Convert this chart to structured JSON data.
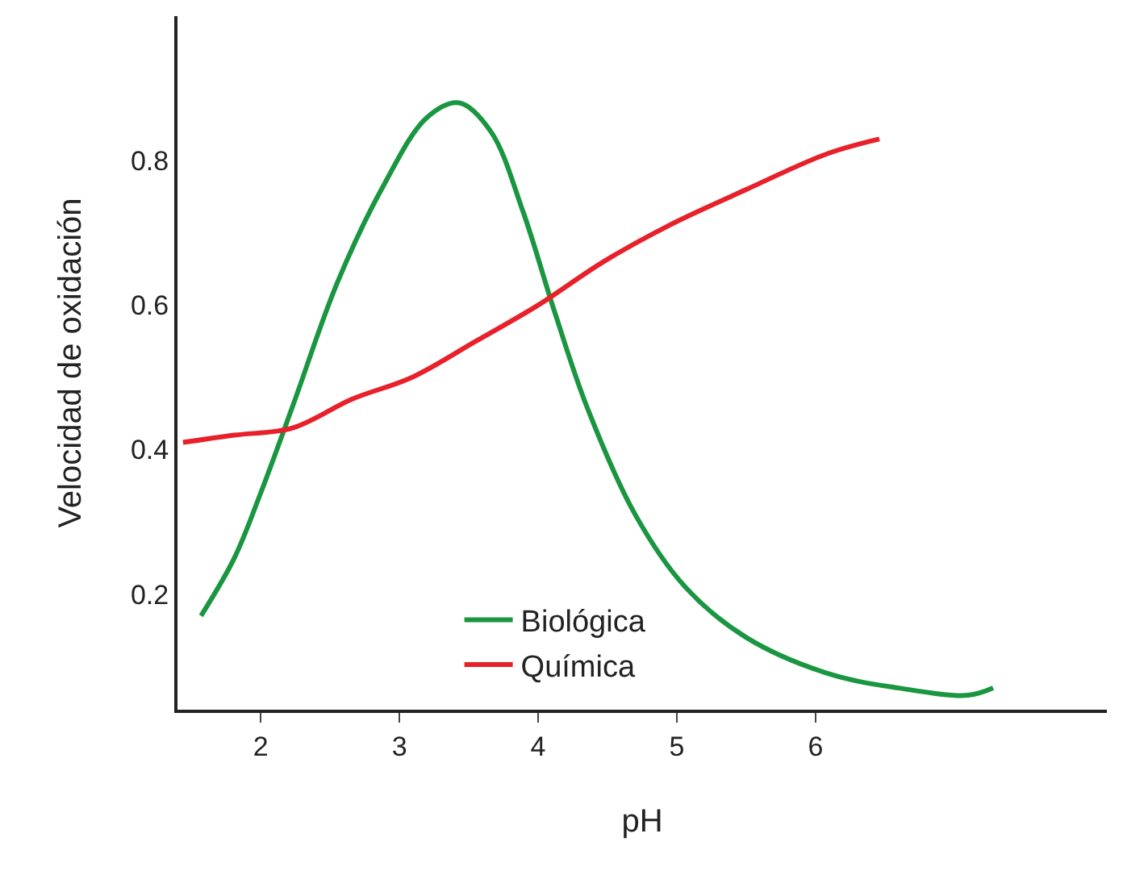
{
  "chart_data": {
    "type": "line",
    "xlabel": "pH",
    "ylabel": "Velocidad de oxidación",
    "xlim": [
      1.4,
      8.1
    ],
    "xticks": [
      2,
      3,
      4,
      5,
      6
    ],
    "ylim": [
      0.04,
      1.0
    ],
    "yticks": [
      0.2,
      0.4,
      0.6,
      0.8
    ],
    "legend": "bottom",
    "marker": "none",
    "line_style": "solid",
    "series": [
      {
        "name": "Biológica",
        "color": "#1a9641",
        "x": [
          1.57,
          1.81,
          2,
          2.23,
          2.55,
          2.87,
          3.2,
          3.43,
          3.66,
          3.89,
          4.12,
          4.35,
          4.7,
          5.06,
          5.5,
          6.09,
          6.6,
          7.1,
          7.28
        ],
        "values": [
          0.17,
          0.25,
          0.34,
          0.46,
          0.63,
          0.76,
          0.86,
          0.88,
          0.84,
          0.73,
          0.59,
          0.46,
          0.31,
          0.21,
          0.14,
          0.09,
          0.07,
          0.06,
          0.07
        ]
      },
      {
        "name": "Química",
        "color": "#e8202a",
        "x": [
          1.44,
          1.81,
          2.23,
          2.66,
          3.09,
          3.55,
          4,
          4.47,
          4.94,
          5.5,
          6.09,
          6.46
        ],
        "values": [
          0.41,
          0.42,
          0.43,
          0.47,
          0.5,
          0.55,
          0.6,
          0.66,
          0.71,
          0.76,
          0.81,
          0.83
        ]
      }
    ]
  }
}
